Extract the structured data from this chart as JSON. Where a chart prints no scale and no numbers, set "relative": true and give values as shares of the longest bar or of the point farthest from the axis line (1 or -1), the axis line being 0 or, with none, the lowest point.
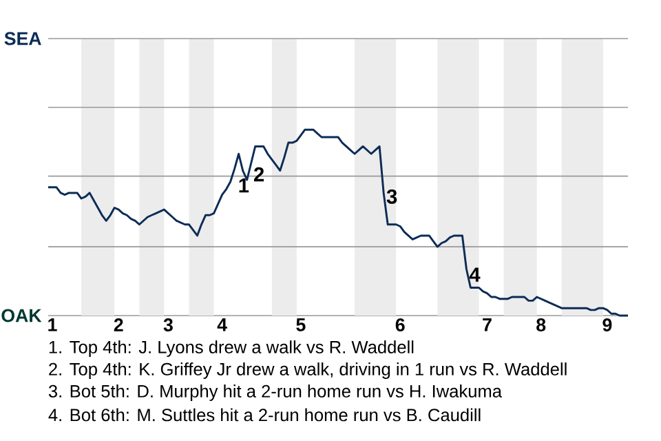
{
  "chart_data": {
    "type": "line",
    "color": "#0c2c56",
    "relative": true,
    "categories": [
      null,
      "1",
      null,
      null,
      null,
      null,
      null,
      null,
      null,
      null,
      null,
      null,
      null,
      null,
      null,
      null,
      null,
      "2",
      null,
      null,
      null,
      null,
      null,
      null,
      null,
      null,
      null,
      null,
      null,
      "3",
      null,
      null,
      null,
      null,
      null,
      null,
      null,
      null,
      null,
      null,
      null,
      null,
      "4",
      null,
      null,
      null,
      null,
      null,
      null,
      null,
      null,
      null,
      null,
      null,
      null,
      null,
      null,
      null,
      null,
      null,
      null,
      "5",
      null,
      null,
      null,
      null,
      null,
      null,
      null,
      null,
      null,
      null,
      null,
      null,
      null,
      null,
      null,
      null,
      null,
      null,
      null,
      null,
      null,
      null,
      null,
      "6",
      null,
      null,
      null,
      null,
      null,
      null,
      null,
      null,
      null,
      null,
      null,
      null,
      null,
      null,
      null,
      null,
      null,
      null,
      null,
      null,
      "7",
      null,
      null,
      null,
      null,
      null,
      null,
      null,
      null,
      null,
      null,
      null,
      null,
      "8",
      null,
      null,
      null,
      null,
      null,
      null,
      null,
      null,
      null,
      null,
      null,
      null,
      null,
      null,
      null,
      "9",
      null,
      null,
      null,
      null,
      null
    ],
    "values": [
      0.69,
      0.69,
      0.69,
      0.66,
      0.65,
      0.66,
      0.66,
      0.66,
      0.63,
      0.64,
      0.66,
      0.62,
      0.58,
      0.54,
      0.51,
      0.54,
      0.58,
      0.57,
      0.55,
      0.54,
      0.52,
      0.51,
      0.49,
      0.51,
      0.53,
      0.54,
      0.55,
      0.56,
      0.57,
      0.55,
      0.53,
      0.51,
      0.5,
      0.49,
      0.49,
      0.46,
      0.43,
      0.49,
      0.54,
      0.54,
      0.55,
      0.6,
      0.65,
      0.68,
      0.72,
      0.79,
      0.87,
      0.78,
      0.73,
      0.82,
      0.91,
      0.91,
      0.91,
      0.87,
      0.84,
      0.81,
      0.78,
      0.85,
      0.93,
      0.93,
      0.94,
      0.97,
      1,
      1,
      1,
      0.98,
      0.96,
      0.96,
      0.96,
      0.96,
      0.96,
      0.93,
      0.91,
      0.89,
      0.87,
      0.89,
      0.91,
      0.89,
      0.87,
      0.89,
      0.91,
      0.66,
      0.49,
      0.49,
      0.49,
      0.48,
      0.45,
      0.43,
      0.41,
      0.42,
      0.43,
      0.43,
      0.43,
      0.4,
      0.37,
      0.39,
      0.4,
      0.42,
      0.43,
      0.43,
      0.43,
      0.25,
      0.15,
      0.15,
      0.15,
      0.13,
      0.12,
      0.1,
      0.1,
      0.09,
      0.09,
      0.09,
      0.1,
      0.1,
      0.1,
      0.1,
      0.08,
      0.08,
      0.1,
      0.09,
      0.08,
      0.07,
      0.06,
      0.05,
      0.04,
      0.04,
      0.04,
      0.04,
      0.04,
      0.04,
      0.04,
      0.03,
      0.03,
      0.04,
      0.04,
      0.03,
      0.01,
      0.01,
      0,
      0,
      0
    ],
    "ref_lines": [
      {
        "axis": "y",
        "value": 0.37,
        "color": "#999999"
      },
      {
        "axis": "y",
        "value": 0.75,
        "color": "#999999"
      },
      {
        "axis": "y",
        "value": 1.12,
        "color": "#999999"
      },
      {
        "axis": "y",
        "value": 1.49,
        "color": "#999999"
      }
    ],
    "annotations": [
      "SEA",
      "OAK",
      "1",
      "2",
      "3",
      "4",
      "1. Top 4th: J. Lyons drew a walk vs R. Waddell",
      "2. Top 4th: K. Griffey Jr drew a walk, driving in 1 run vs R. Waddell",
      "3. Bot 5th: D. Murphy hit a 2-run home run vs H. Iwakuma",
      "4. Bot 6th: M. Suttles hit a 2-run home run vs B. Caudill"
    ]
  }
}
